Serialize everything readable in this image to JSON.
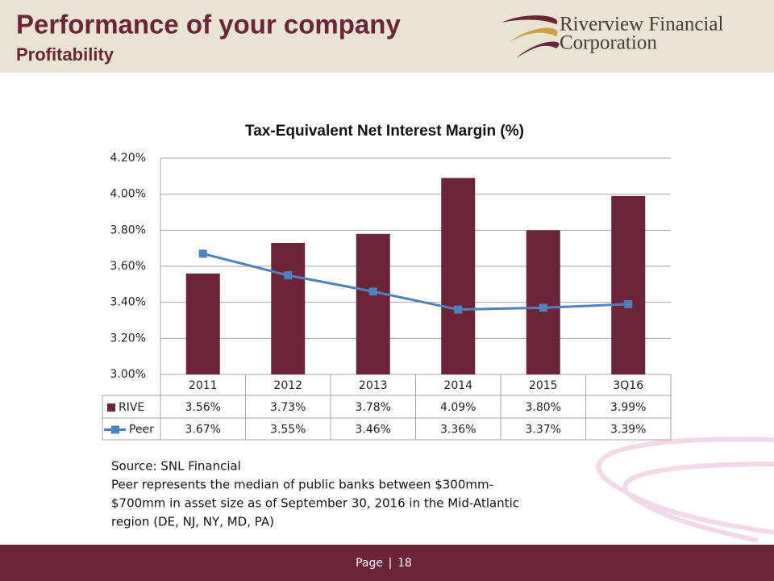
{
  "header": {
    "title": "Performance of your company",
    "subtitle": "Profitability",
    "logo_line1": "Riverview Financial",
    "logo_line2": "Corporation"
  },
  "chart_data": {
    "type": "bar_line_table",
    "title": "Tax-Equivalent Net Interest Margin (%)",
    "categories": [
      "2011",
      "2012",
      "2013",
      "2014",
      "2015",
      "3Q16"
    ],
    "series": [
      {
        "name": "RIVE",
        "type": "bar",
        "color": "#6b2438",
        "values": [
          3.56,
          3.73,
          3.78,
          4.09,
          3.8,
          3.99
        ],
        "value_labels": [
          "3.56%",
          "3.73%",
          "3.78%",
          "4.09%",
          "3.80%",
          "3.99%"
        ]
      },
      {
        "name": "Peer",
        "type": "line",
        "color": "#4f81bd",
        "values": [
          3.67,
          3.55,
          3.46,
          3.36,
          3.37,
          3.39
        ],
        "value_labels": [
          "3.67%",
          "3.55%",
          "3.46%",
          "3.36%",
          "3.37%",
          "3.39%"
        ]
      }
    ],
    "ylim": [
      3.0,
      4.2
    ],
    "yticks": [
      {
        "value": 3.0,
        "label": "3.00%"
      },
      {
        "value": 3.2,
        "label": "3.20%"
      },
      {
        "value": 3.4,
        "label": "3.40%"
      },
      {
        "value": 3.6,
        "label": "3.60%"
      },
      {
        "value": 3.8,
        "label": "3.80%"
      },
      {
        "value": 4.0,
        "label": "4.00%"
      },
      {
        "value": 4.2,
        "label": "4.20%"
      }
    ],
    "grid": true
  },
  "notes": [
    "Source: SNL Financial",
    "Peer represents the median of public banks between $300mm-",
    "$700mm in asset size as of September 30, 2016 in the Mid-Atlantic",
    "region (DE, NJ, NY, MD, PA)"
  ],
  "footer": {
    "label": "Page",
    "separator": "|",
    "number": "18"
  }
}
